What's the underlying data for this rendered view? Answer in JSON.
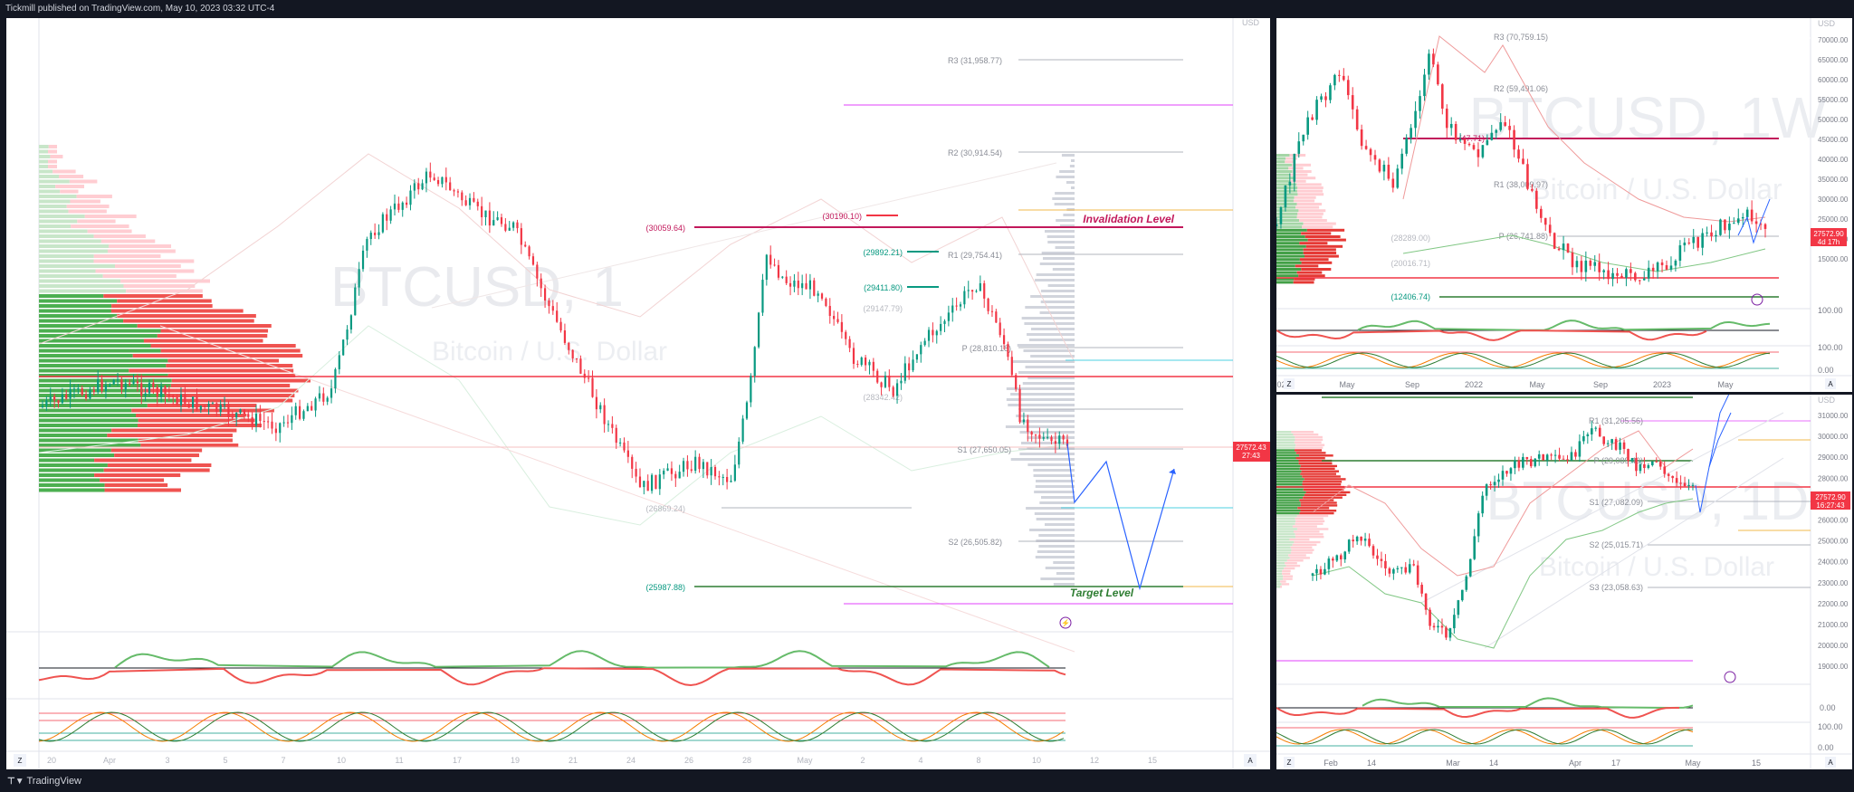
{
  "header": {
    "publish_info": "Tickmill published on TradingView.com, May 10, 2023 03:32 UTC-4"
  },
  "footer": {
    "logo_text": "TradingView"
  },
  "main_chart": {
    "symbol_watermark": "BTCUSD, 1",
    "name_watermark": "Bitcoin / U.S. Dollar",
    "currency": "USD",
    "price_badge": {
      "price": "27572.43",
      "time": "27:43"
    },
    "annotations": {
      "invalidation": "Invalidation Level",
      "target": "Target Level"
    },
    "levels": {
      "r3": "R3 (31,958.77)",
      "r2": "R2 (30,914.54)",
      "r1": "R1 (29,754.41)",
      "p": "P (28,810.18)",
      "s1": "S1 (27,650.05)",
      "s2": "S2 (26,505.82)",
      "l30190": "(30190.10)",
      "l30059": "(30059.64)",
      "l29892": "(29892.21)",
      "l29411": "(29411.80)",
      "l29147": "(29147.79)",
      "l28342": "(28342.42)",
      "l26869": "(26869.24)",
      "l25987": "(25987.88)"
    },
    "x_axis": [
      "20",
      "Apr",
      "3",
      "5",
      "7",
      "10",
      "11",
      "17",
      "19",
      "21",
      "24",
      "26",
      "28",
      "May",
      "2",
      "4",
      "8",
      "10",
      "12",
      "15"
    ],
    "corner": {
      "z": "Z",
      "a": "A"
    }
  },
  "weekly_chart": {
    "symbol_watermark": "BTCUSD, 1W",
    "name_watermark": "Bitcoin / U.S. Dollar",
    "currency": "USD",
    "price_badge": {
      "price": "27572.90",
      "time": "4d 17h"
    },
    "levels": {
      "r3": "R3 (70,759.15)",
      "r2": "R2 (59,491.06)",
      "r1": "R1 (38,009.97)",
      "p": "P (26,741.88)",
      "s1": "(28289.00)",
      "s2": "(20016.71)",
      "l48k": "(47.71)",
      "l12406": "(12406.74)"
    },
    "y_axis": [
      "70000.00",
      "65000.00",
      "60000.00",
      "55000.00",
      "50000.00",
      "45000.00",
      "40000.00",
      "35000.00",
      "30000.00",
      "25000.00",
      "20000.00",
      "15000.00"
    ],
    "x_axis": [
      "021",
      "May",
      "Sep",
      "2022",
      "May",
      "Sep",
      "2023",
      "May"
    ],
    "osc_axis": [
      "100.00",
      "0.00"
    ],
    "stoch_axis": [
      "100.00",
      "0.00"
    ],
    "corner": {
      "z": "Z",
      "a": "A"
    }
  },
  "daily_chart": {
    "symbol_watermark": "BTCUSD, 1D",
    "name_watermark": "Bitcoin / U.S. Dollar",
    "currency": "USD",
    "price_badge": {
      "price": "27572.90",
      "time": "16:27:43"
    },
    "levels": {
      "r1": "R1 (31,205.56)",
      "p": "P (29,089.49)",
      "s1": "S1 (27,082.09)",
      "s2": "S2 (25,015.71)",
      "s3": "S3 (23,058.63)"
    },
    "y_axis": [
      "31000.00",
      "30000.00",
      "29000.00",
      "28000.00",
      "27000.00",
      "26000.00",
      "25000.00",
      "24000.00",
      "23000.00",
      "22000.00",
      "21000.00",
      "20000.00",
      "19000.00"
    ],
    "x_axis": [
      "Feb",
      "14",
      "Mar",
      "14",
      "Apr",
      "17",
      "May",
      "15"
    ],
    "osc_axis": [
      "0.00"
    ],
    "stoch_axis": [
      "100.00",
      "0.00"
    ],
    "corner": {
      "z": "Z",
      "a": "A"
    }
  },
  "colors": {
    "up": "#089981",
    "down": "#f23645",
    "pivot_line": "#b2b5be",
    "magenta": "#e040fb",
    "cyan": "#00bcd4",
    "blue_path": "#2962ff"
  }
}
